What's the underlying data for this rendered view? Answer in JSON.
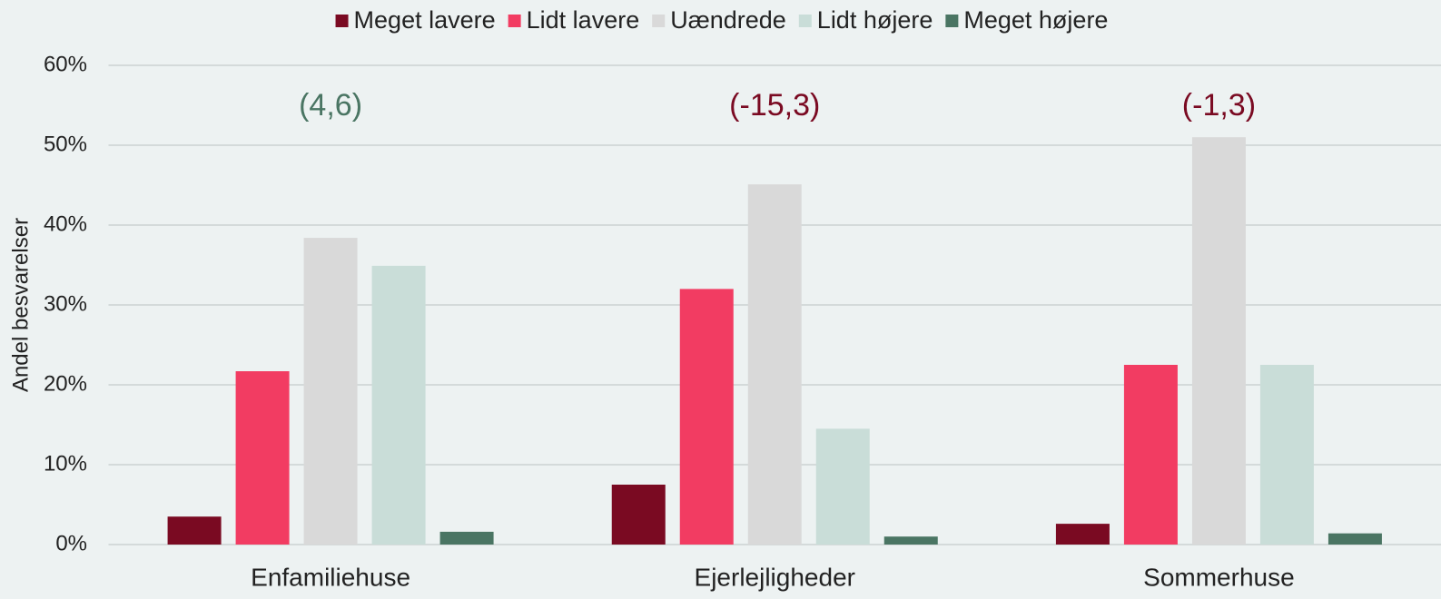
{
  "chart_data": {
    "type": "bar",
    "y_label": "Andel besvarelser",
    "categories": [
      "Enfamiliehuse",
      "Ejerlejligheder",
      "Sommerhuse"
    ],
    "series": [
      {
        "name": "Meget lavere",
        "color": "#7a0a22",
        "values": [
          3.5,
          7.5,
          2.6
        ]
      },
      {
        "name": "Lidt lavere",
        "color": "#f23c62",
        "values": [
          21.7,
          32.0,
          22.5
        ]
      },
      {
        "name": "Uændrede",
        "color": "#d9d9d9",
        "values": [
          38.4,
          45.1,
          51.0
        ]
      },
      {
        "name": "Lidt højere",
        "color": "#c9ddd8",
        "values": [
          34.9,
          14.5,
          22.5
        ]
      },
      {
        "name": "Meget højere",
        "color": "#4a7563",
        "values": [
          1.6,
          1.0,
          1.4
        ]
      }
    ],
    "annotations": [
      {
        "text": "(4,6)",
        "color": "#4a7563"
      },
      {
        "text": "(-15,3)",
        "color": "#7a0a22"
      },
      {
        "text": "(-1,3)",
        "color": "#7a0a22"
      }
    ],
    "ylim": [
      0,
      60
    ],
    "yticks": [
      {
        "value": 0,
        "label": "0%"
      },
      {
        "value": 10,
        "label": "10%"
      },
      {
        "value": 20,
        "label": "20%"
      },
      {
        "value": 30,
        "label": "30%"
      },
      {
        "value": 40,
        "label": "40%"
      },
      {
        "value": 50,
        "label": "50%"
      },
      {
        "value": 60,
        "label": "60%"
      }
    ],
    "grid": true,
    "legend": "top"
  }
}
